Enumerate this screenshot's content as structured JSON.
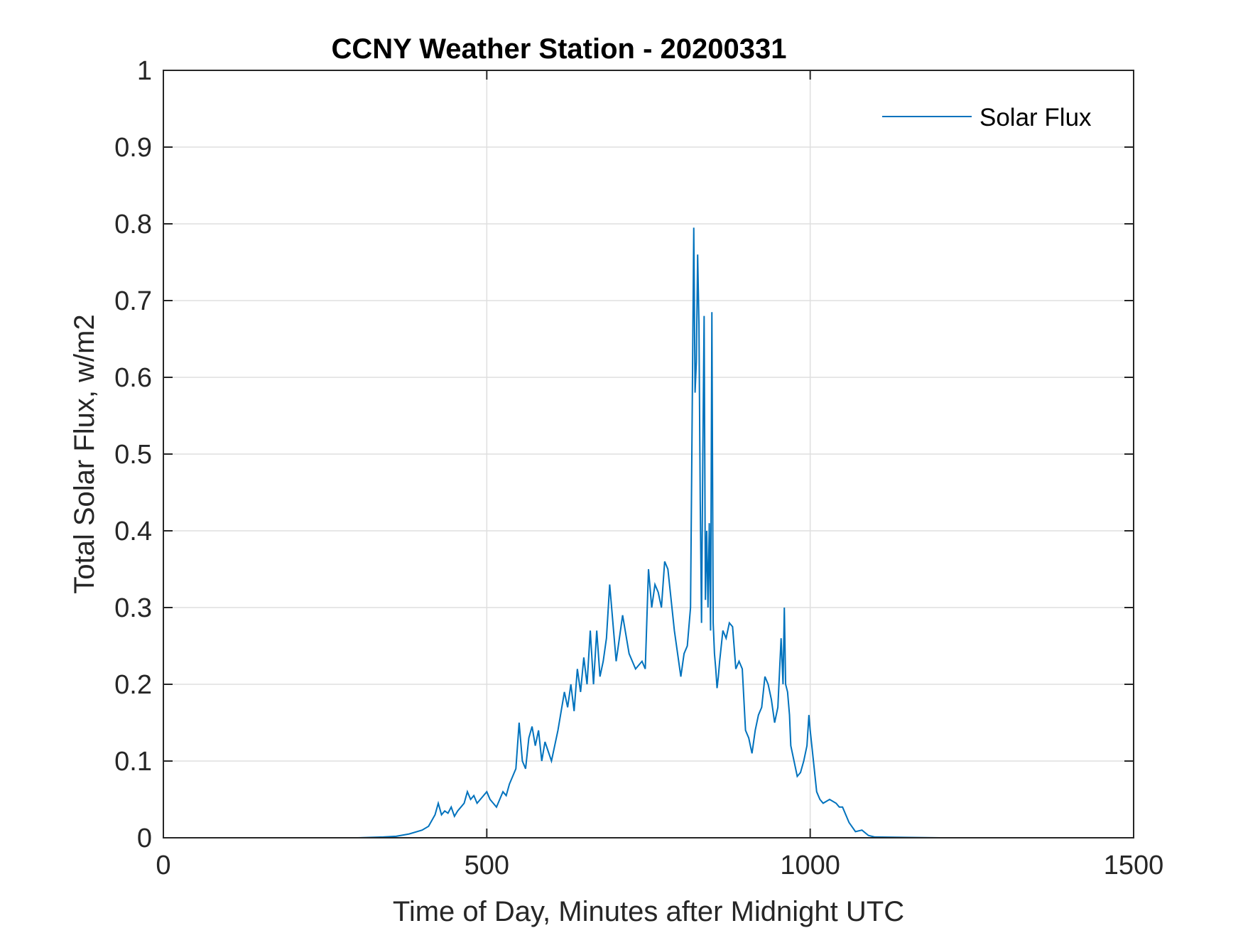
{
  "chart_data": {
    "type": "line",
    "title": "CCNY Weather Station - 20200331",
    "xlabel": "Time of Day, Minutes after Midnight UTC",
    "ylabel": "Total Solar Flux, w/m2",
    "xlim": [
      0,
      1500
    ],
    "ylim": [
      0,
      1
    ],
    "xticks": [
      0,
      500,
      1000,
      1500
    ],
    "xtick_labels": [
      "0",
      "500",
      "1000",
      "1500"
    ],
    "yticks": [
      0,
      0.1,
      0.2,
      0.3,
      0.4,
      0.5,
      0.6,
      0.7,
      0.8,
      0.9,
      1
    ],
    "ytick_labels": [
      "0",
      "0.1",
      "0.2",
      "0.3",
      "0.4",
      "0.5",
      "0.6",
      "0.7",
      "0.8",
      "0.9",
      "1"
    ],
    "grid": true,
    "legend_position": "top-right",
    "series": [
      {
        "name": "Solar Flux",
        "color": "#0072BD",
        "x": [
          0,
          100,
          200,
          300,
          340,
          360,
          380,
          400,
          410,
          420,
          425,
          430,
          435,
          440,
          445,
          450,
          455,
          460,
          465,
          470,
          475,
          480,
          485,
          490,
          495,
          500,
          505,
          510,
          515,
          520,
          525,
          530,
          535,
          540,
          545,
          550,
          555,
          560,
          565,
          570,
          575,
          580,
          585,
          590,
          600,
          610,
          620,
          625,
          630,
          635,
          640,
          645,
          650,
          655,
          660,
          665,
          670,
          675,
          680,
          685,
          690,
          700,
          710,
          720,
          730,
          740,
          745,
          750,
          755,
          760,
          765,
          770,
          775,
          780,
          790,
          800,
          805,
          810,
          815,
          820,
          822,
          824,
          826,
          828,
          830,
          832,
          834,
          836,
          838,
          840,
          842,
          844,
          846,
          848,
          850,
          852,
          854,
          856,
          858,
          860,
          865,
          870,
          875,
          880,
          885,
          890,
          895,
          900,
          905,
          910,
          915,
          920,
          925,
          930,
          935,
          940,
          945,
          950,
          955,
          958,
          960,
          962,
          965,
          968,
          970,
          975,
          980,
          985,
          990,
          995,
          998,
          1000,
          1005,
          1010,
          1015,
          1020,
          1030,
          1040,
          1045,
          1050,
          1060,
          1070,
          1080,
          1090,
          1100,
          1200,
          1300,
          1400,
          1440
        ],
        "values": [
          0,
          0,
          0,
          0,
          0.001,
          0.002,
          0.005,
          0.01,
          0.015,
          0.03,
          0.045,
          0.03,
          0.035,
          0.032,
          0.04,
          0.028,
          0.035,
          0.04,
          0.045,
          0.06,
          0.05,
          0.055,
          0.045,
          0.05,
          0.055,
          0.06,
          0.05,
          0.045,
          0.04,
          0.05,
          0.06,
          0.055,
          0.07,
          0.08,
          0.09,
          0.15,
          0.1,
          0.09,
          0.13,
          0.145,
          0.12,
          0.14,
          0.1,
          0.125,
          0.1,
          0.14,
          0.19,
          0.17,
          0.2,
          0.165,
          0.22,
          0.19,
          0.235,
          0.2,
          0.27,
          0.2,
          0.27,
          0.21,
          0.23,
          0.26,
          0.33,
          0.23,
          0.29,
          0.24,
          0.22,
          0.23,
          0.22,
          0.35,
          0.3,
          0.33,
          0.32,
          0.3,
          0.36,
          0.35,
          0.27,
          0.21,
          0.24,
          0.25,
          0.3,
          0.795,
          0.58,
          0.62,
          0.76,
          0.67,
          0.44,
          0.28,
          0.5,
          0.68,
          0.31,
          0.4,
          0.3,
          0.41,
          0.27,
          0.685,
          0.28,
          0.24,
          0.22,
          0.195,
          0.21,
          0.23,
          0.27,
          0.26,
          0.28,
          0.275,
          0.22,
          0.23,
          0.22,
          0.14,
          0.13,
          0.11,
          0.14,
          0.16,
          0.17,
          0.21,
          0.2,
          0.18,
          0.15,
          0.17,
          0.26,
          0.2,
          0.3,
          0.2,
          0.19,
          0.16,
          0.12,
          0.1,
          0.08,
          0.085,
          0.1,
          0.12,
          0.16,
          0.14,
          0.1,
          0.06,
          0.05,
          0.045,
          0.05,
          0.045,
          0.04,
          0.04,
          0.02,
          0.008,
          0.01,
          0.003,
          0.001,
          0,
          0,
          0,
          0
        ]
      }
    ]
  }
}
